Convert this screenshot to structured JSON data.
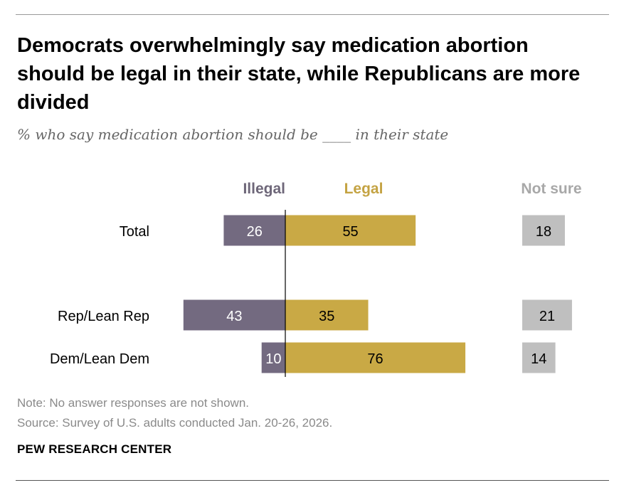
{
  "title": "Democrats overwhelmingly say medication abortion should be legal in their state, while Republicans are more divided",
  "subtitle": "% who say medication abortion should be ____ in their state",
  "note": "Note: No answer responses are not shown.",
  "source": "Source: Survey of U.S. adults conducted Jan. 20-26, 2026.",
  "brand": "PEW RESEARCH CENTER",
  "colors": {
    "illegal": "#736a80",
    "legal": "#c9a945",
    "not_sure": "#bfbfbf",
    "illegal_header": "#6e6779",
    "legal_header": "#c4a343",
    "not_sure_header": "#a8a8a8"
  },
  "chart_data": {
    "type": "bar",
    "orientation": "horizontal",
    "stacking": "diverging",
    "categories": [
      "Total",
      "Rep/Lean Rep",
      "Dem/Lean Dem"
    ],
    "series": [
      {
        "name": "Illegal",
        "values": [
          26,
          43,
          10
        ]
      },
      {
        "name": "Legal",
        "values": [
          55,
          35,
          76
        ]
      },
      {
        "name": "Not sure",
        "values": [
          18,
          21,
          14
        ]
      }
    ],
    "data_labels": true,
    "grid": false
  }
}
